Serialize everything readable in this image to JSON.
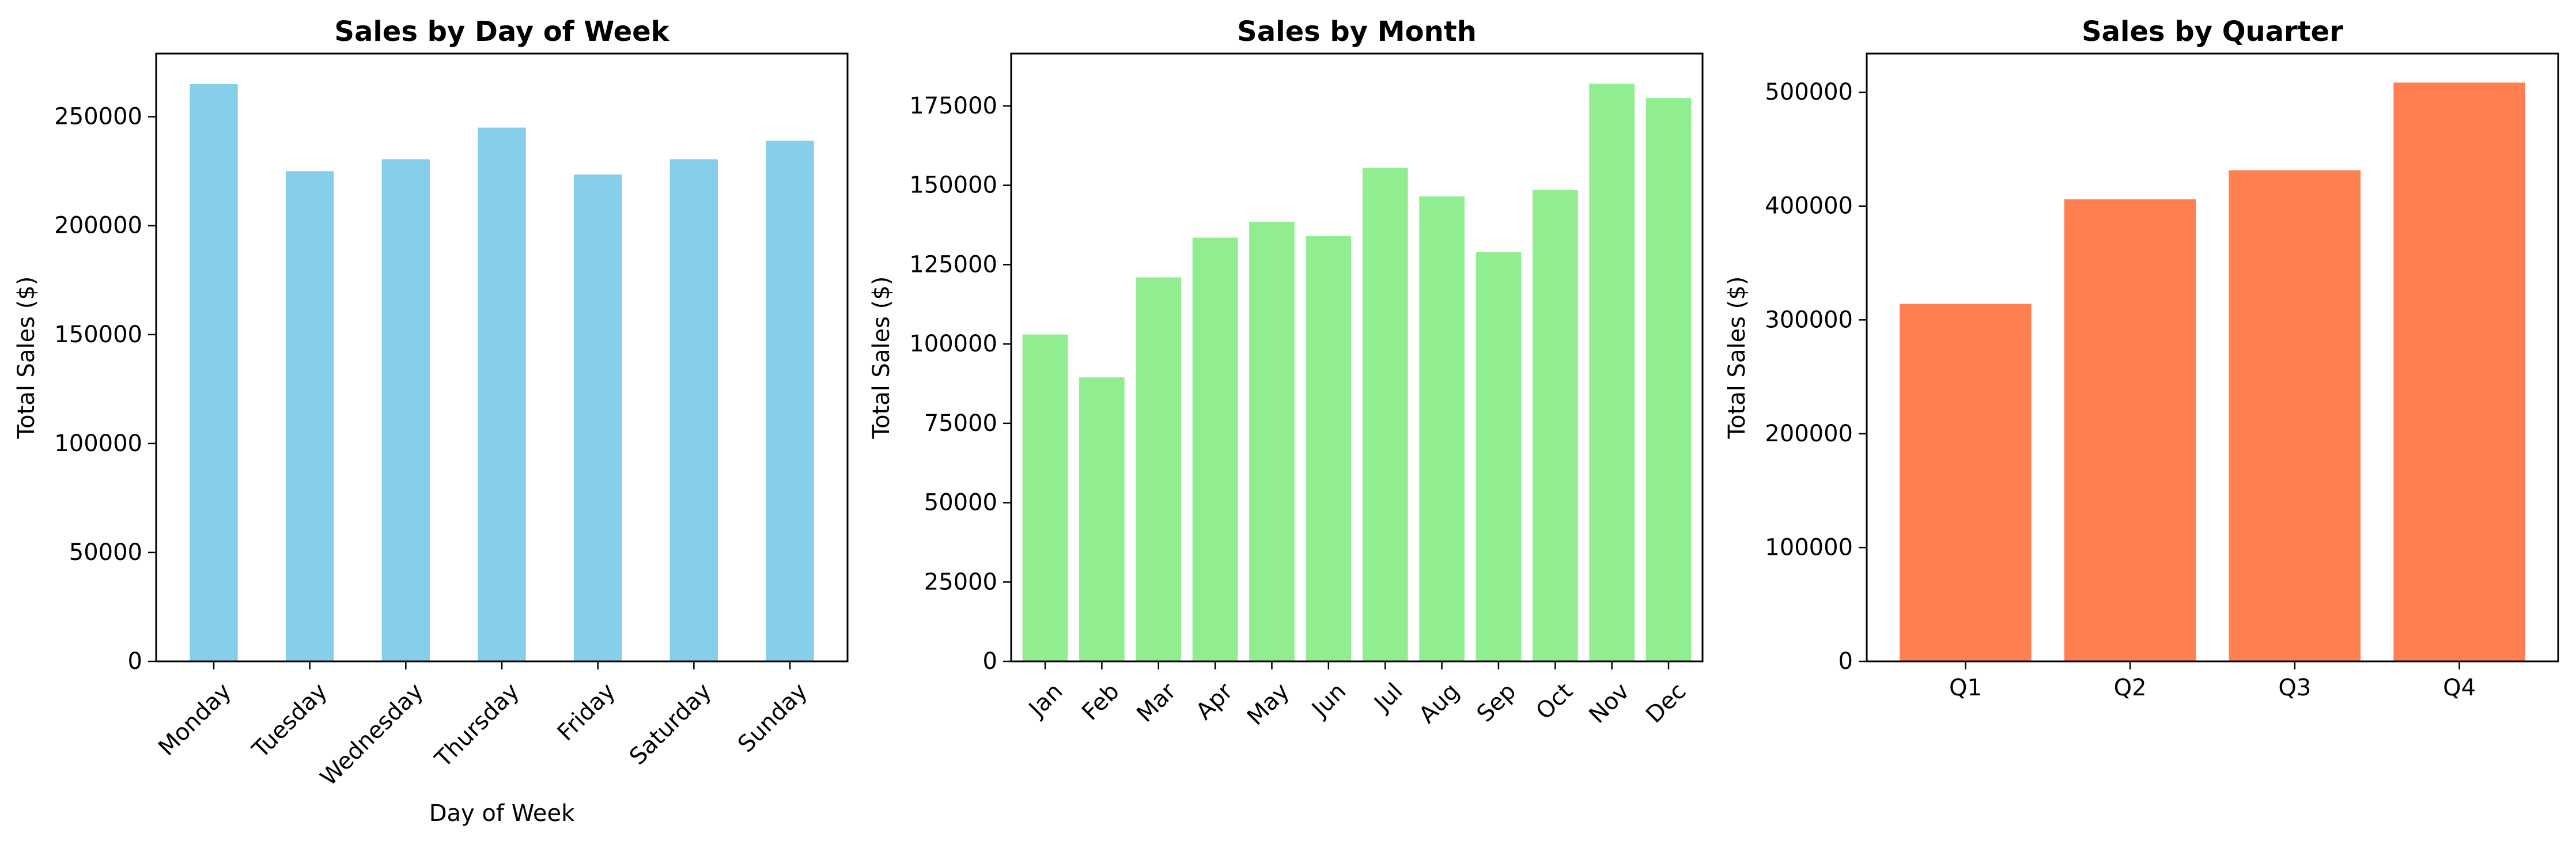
{
  "chart_data": [
    {
      "type": "bar",
      "title": "Sales by Day of Week",
      "xlabel": "Day of Week",
      "ylabel": "Total Sales ($)",
      "color": "#87CEEB",
      "categories": [
        "Monday",
        "Tuesday",
        "Wednesday",
        "Thursday",
        "Friday",
        "Saturday",
        "Sunday"
      ],
      "values": [
        265000,
        225000,
        230500,
        245000,
        223500,
        230500,
        239000
      ],
      "ylim": [
        0,
        279000
      ],
      "yticks": [
        0,
        50000,
        100000,
        150000,
        200000,
        250000
      ],
      "ytick_labels": [
        "0",
        "50000",
        "100000",
        "150000",
        "200000",
        "250000"
      ],
      "rotate_xticks": true,
      "grid": false,
      "legend": false
    },
    {
      "type": "bar",
      "title": "Sales by Month",
      "xlabel": "",
      "ylabel": "Total Sales ($)",
      "color": "#90EE90",
      "categories": [
        "Jan",
        "Feb",
        "Mar",
        "Apr",
        "May",
        "Jun",
        "Jul",
        "Aug",
        "Sep",
        "Oct",
        "Nov",
        "Dec"
      ],
      "values": [
        103000,
        89500,
        121000,
        133500,
        138500,
        134000,
        155500,
        146500,
        129000,
        148500,
        182000,
        177500
      ],
      "ylim": [
        0,
        191500
      ],
      "yticks": [
        0,
        25000,
        50000,
        75000,
        100000,
        125000,
        150000,
        175000
      ],
      "ytick_labels": [
        "0",
        "25000",
        "50000",
        "75000",
        "100000",
        "125000",
        "150000",
        "175000"
      ],
      "rotate_xticks": true,
      "grid": false,
      "legend": false
    },
    {
      "type": "bar",
      "title": "Sales by Quarter",
      "xlabel": "",
      "ylabel": "Total Sales ($)",
      "color": "#FF7F50",
      "categories": [
        "Q1",
        "Q2",
        "Q3",
        "Q4"
      ],
      "values": [
        314000,
        406000,
        431500,
        508500
      ],
      "ylim": [
        0,
        534000
      ],
      "yticks": [
        0,
        100000,
        200000,
        300000,
        400000,
        500000
      ],
      "ytick_labels": [
        "0",
        "100000",
        "200000",
        "300000",
        "400000",
        "500000"
      ],
      "rotate_xticks": false,
      "grid": false,
      "legend": false
    }
  ]
}
